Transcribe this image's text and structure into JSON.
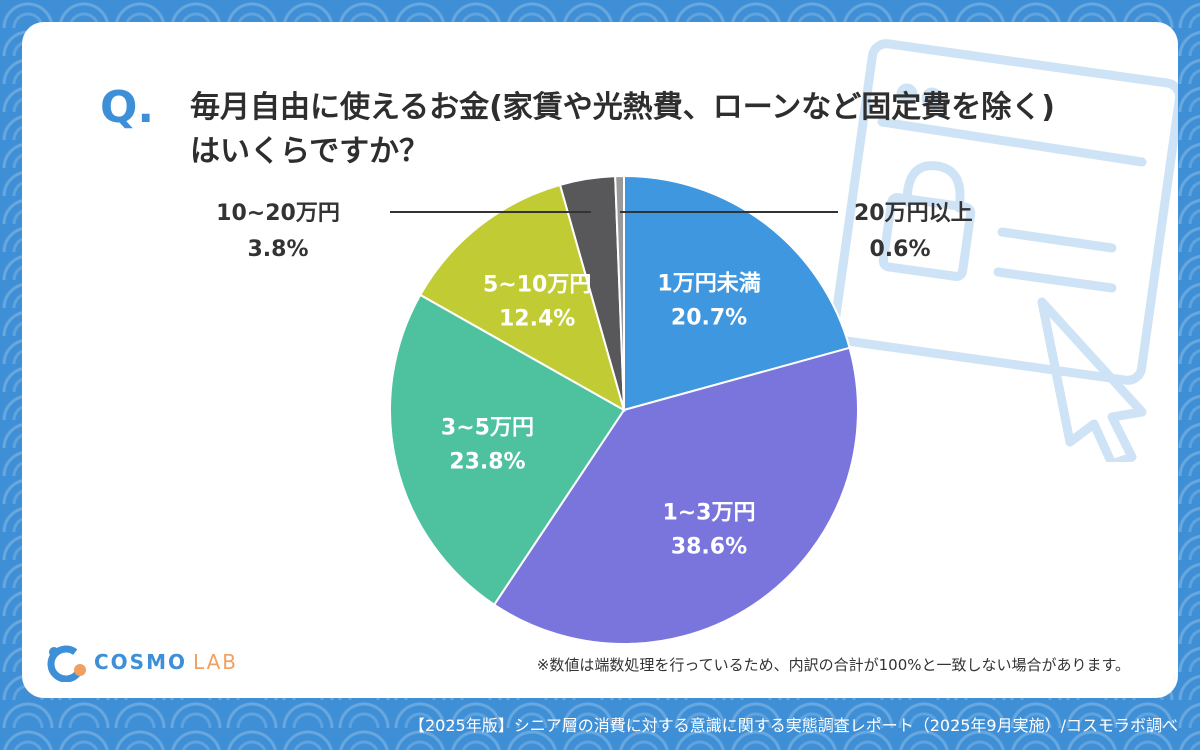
{
  "question": {
    "mark": "Q.",
    "line1": "毎月自由に使えるお金(家賃や光熱費、ローンなど固定費を除く)",
    "line2": "はいくらですか？"
  },
  "chart_data": {
    "type": "pie",
    "title": "毎月自由に使えるお金(家賃や光熱費、ローンなど固定費を除く)はいくらですか？",
    "unit": "%",
    "start": "12 o'clock, clockwise",
    "slices": [
      {
        "label": "1万円未満",
        "value": 20.7,
        "value_text": "20.7%",
        "color": "#3f97df",
        "label_pos": "inside"
      },
      {
        "label": "1~3万円",
        "value": 38.6,
        "value_text": "38.6%",
        "color": "#7a75dc",
        "label_pos": "inside"
      },
      {
        "label": "3~5万円",
        "value": 23.8,
        "value_text": "23.8%",
        "color": "#4ec29f",
        "label_pos": "inside"
      },
      {
        "label": "5~10万円",
        "value": 12.4,
        "value_text": "12.4%",
        "color": "#c1cc35",
        "label_pos": "inside"
      },
      {
        "label": "10~20万円",
        "value": 3.8,
        "value_text": "3.8%",
        "color": "#58585a",
        "label_pos": "outside-left"
      },
      {
        "label": "20万円以上",
        "value": 0.6,
        "value_text": "0.6%",
        "color": "#9a9a9a",
        "label_pos": "outside-right"
      }
    ]
  },
  "logo": {
    "cosmo": "COSMO",
    "lab": "LAB"
  },
  "note": "※数値は端数処理を行っているため、内訳の合計が100%と一致しない場合があります。",
  "footer": "【2025年版】シニア層の消費に対する意識に関する実態調査レポート（2025年9月実施）/コスモラボ調べ"
}
